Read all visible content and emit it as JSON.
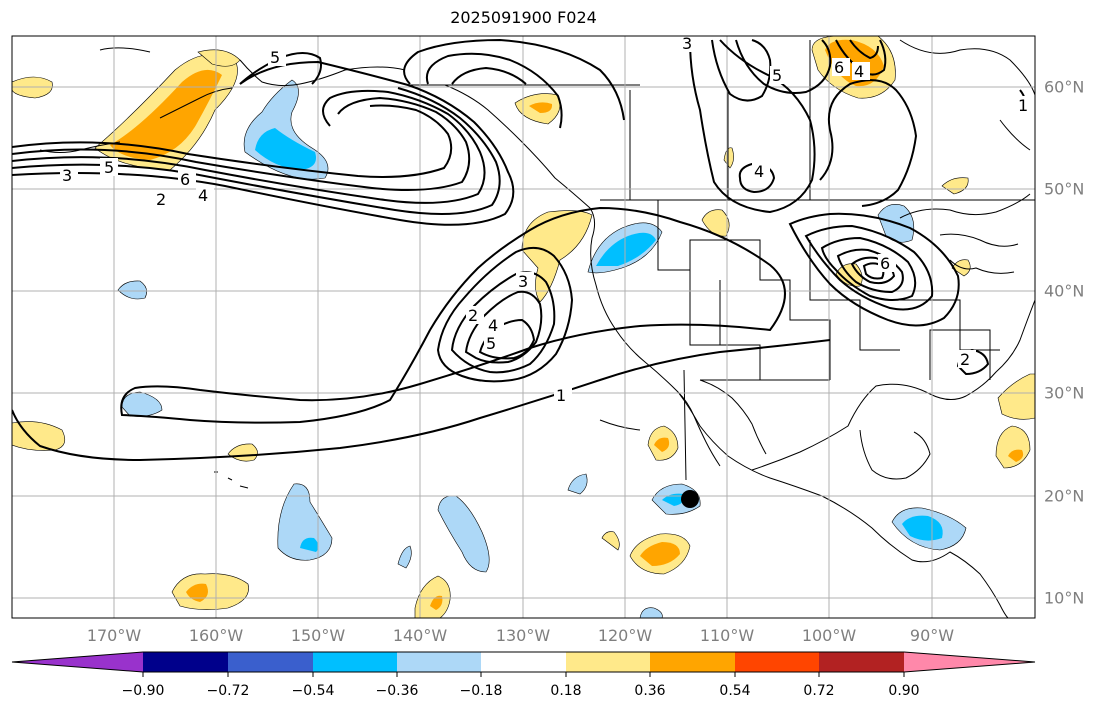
{
  "title": "2025091900 F024",
  "lon_labels": [
    "170°W",
    "160°W",
    "150°W",
    "140°W",
    "130°W",
    "120°W",
    "110°W",
    "100°W",
    "90°W"
  ],
  "lat_labels": [
    "60°N",
    "50°N",
    "40°N",
    "30°N",
    "20°N",
    "10°N"
  ],
  "colorbar": {
    "tick_labels": [
      "−0.90",
      "−0.72",
      "−0.54",
      "−0.36",
      "−0.18",
      "0.18",
      "0.36",
      "0.54",
      "0.72",
      "0.90"
    ],
    "colors": [
      "#9932cc",
      "#00008b",
      "#3a5fcd",
      "#00bfff",
      "#add8f7",
      "#ffffff",
      "#ffe98a",
      "#ffa500",
      "#ff4500",
      "#b22222",
      "#ff88aa"
    ]
  },
  "contour_labels": [
    "1",
    "2",
    "3",
    "4",
    "5",
    "6"
  ],
  "colors": {
    "grid": "#b0b0b0",
    "axis_text": "#7f7f7f",
    "contour": "#000000"
  }
}
